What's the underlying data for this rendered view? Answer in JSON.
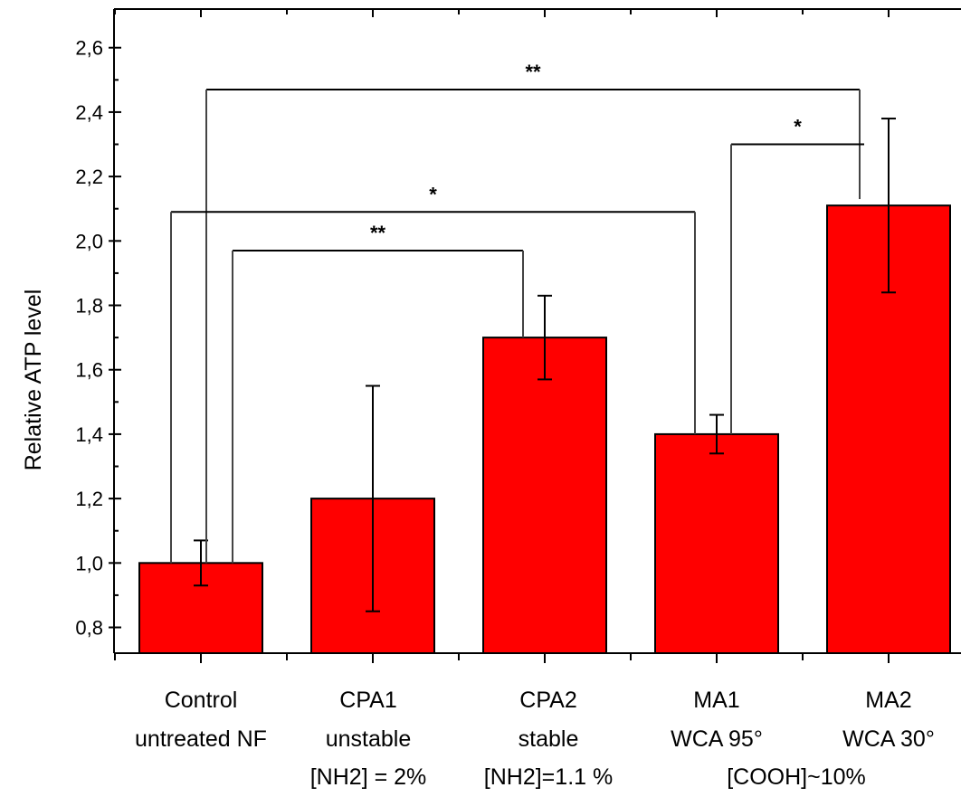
{
  "chart_data": {
    "type": "bar",
    "ylabel": "Relative ATP level",
    "ylim": [
      0.72,
      2.72
    ],
    "yticks": [
      "0,8",
      "1,0",
      "1,2",
      "1,4",
      "1,6",
      "1,8",
      "2,0",
      "2,2",
      "2,4",
      "2,6"
    ],
    "ytick_values": [
      0.8,
      1.0,
      1.2,
      1.4,
      1.6,
      1.8,
      2.0,
      2.2,
      2.4,
      2.6
    ],
    "bar_color": "#ff0000",
    "categories": [
      {
        "lines": [
          "Control",
          "untreated NF"
        ]
      },
      {
        "lines": [
          "CPA1",
          "unstable",
          "[NH2] = 2%"
        ]
      },
      {
        "lines": [
          "CPA2",
          "stable",
          "[NH2]=1.1 %"
        ]
      },
      {
        "lines": [
          "MA1",
          "WCA 95°"
        ]
      },
      {
        "lines": [
          "MA2",
          "WCA 30°"
        ]
      }
    ],
    "shared_label": "[COOH]~10%",
    "values": [
      1.0,
      1.2,
      1.7,
      1.4,
      2.11
    ],
    "error_high": [
      1.07,
      1.55,
      1.83,
      1.46,
      2.38
    ],
    "error_low": [
      0.93,
      0.85,
      1.57,
      1.34,
      1.84
    ],
    "significance": [
      {
        "from": 0,
        "to": 4,
        "y": 2.47,
        "label": "**"
      },
      {
        "from": 3,
        "to": 4,
        "y": 2.3,
        "label": "*"
      },
      {
        "from": 0,
        "to": 3,
        "y": 2.09,
        "label": "*"
      },
      {
        "from": 0,
        "to": 2,
        "y": 1.97,
        "label": "**"
      }
    ],
    "grid": false
  }
}
